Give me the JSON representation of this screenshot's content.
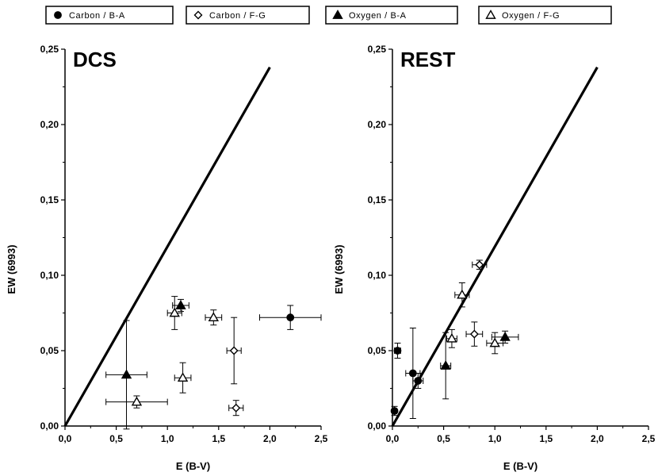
{
  "chart_data": {
    "type": "scatter",
    "legend": [
      {
        "key": "carbon_ba",
        "label": "Carbon / B-A",
        "marker": "circle",
        "fill": "#000000"
      },
      {
        "key": "carbon_fg",
        "label": "Carbon / F-G",
        "marker": "diamond",
        "fill": "#ffffff"
      },
      {
        "key": "oxygen_ba",
        "label": "Oxygen / B-A",
        "marker": "triangle",
        "fill": "#000000"
      },
      {
        "key": "oxygen_fg",
        "label": "Oxygen / F-G",
        "marker": "triangle",
        "fill": "#ffffff"
      }
    ],
    "legend_position": "top",
    "panels": [
      {
        "id": "dcs",
        "title": "DCS",
        "xlabel": "E (B-V)",
        "ylabel": "EW (6993)",
        "xlim": [
          0,
          2.5
        ],
        "ylim": [
          0,
          0.25
        ],
        "xticks": [
          "0,0",
          "0,5",
          "1,0",
          "1,5",
          "2,0",
          "2,5"
        ],
        "yticks": [
          "0,00",
          "0,05",
          "0,10",
          "0,15",
          "0,20",
          "0,25"
        ],
        "reference_line": {
          "x": [
            0,
            2.0
          ],
          "y": [
            0,
            0.238
          ]
        },
        "series": {
          "carbon_ba": [
            {
              "x": 2.2,
              "y": 0.072,
              "xerr": 0.3,
              "yerr": 0.008
            }
          ],
          "carbon_fg": [
            {
              "x": 1.65,
              "y": 0.05,
              "xerr": 0.07,
              "yerr": 0.022
            },
            {
              "x": 1.67,
              "y": 0.012,
              "xerr": 0.07,
              "yerr": 0.005
            }
          ],
          "oxygen_ba": [
            {
              "x": 0.6,
              "y": 0.034,
              "xerr": 0.2,
              "yerr": 0.036
            },
            {
              "x": 1.13,
              "y": 0.08,
              "xerr": 0.08,
              "yerr": 0.004
            }
          ],
          "oxygen_fg": [
            {
              "x": 0.7,
              "y": 0.016,
              "xerr": 0.3,
              "yerr": 0.004
            },
            {
              "x": 1.07,
              "y": 0.075,
              "xerr": 0.07,
              "yerr": 0.011
            },
            {
              "x": 1.15,
              "y": 0.032,
              "xerr": 0.08,
              "yerr": 0.01
            },
            {
              "x": 1.45,
              "y": 0.072,
              "xerr": 0.08,
              "yerr": 0.005
            }
          ]
        }
      },
      {
        "id": "rest",
        "title": "REST",
        "xlabel": "E (B-V)",
        "ylabel": "EW (6993)",
        "xlim": [
          0,
          2.5
        ],
        "ylim": [
          0,
          0.25
        ],
        "xticks": [
          "0,0",
          "0,5",
          "1,0",
          "1,5",
          "2,0",
          "2,5"
        ],
        "yticks": [
          "0,00",
          "0,05",
          "0,10",
          "0,15",
          "0,20",
          "0,25"
        ],
        "reference_line": {
          "x": [
            0,
            2.0
          ],
          "y": [
            0,
            0.238
          ]
        },
        "series": {
          "carbon_ba": [
            {
              "x": 0.05,
              "y": 0.05,
              "xerr": 0.03,
              "yerr": 0.005
            },
            {
              "x": 0.02,
              "y": 0.01,
              "xerr": 0.02,
              "yerr": 0.003
            },
            {
              "x": 0.2,
              "y": 0.035,
              "xerr": 0.07,
              "yerr": 0.03
            },
            {
              "x": 0.25,
              "y": 0.03,
              "xerr": 0.05,
              "yerr": 0.005
            }
          ],
          "carbon_fg": [
            {
              "x": 0.85,
              "y": 0.107,
              "xerr": 0.07,
              "yerr": 0.003
            },
            {
              "x": 0.8,
              "y": 0.061,
              "xerr": 0.08,
              "yerr": 0.008
            }
          ],
          "oxygen_ba": [
            {
              "x": 0.52,
              "y": 0.04,
              "xerr": 0.05,
              "yerr": 0.022
            },
            {
              "x": 1.1,
              "y": 0.059,
              "xerr": 0.13,
              "yerr": 0.004
            }
          ],
          "oxygen_fg": [
            {
              "x": 0.68,
              "y": 0.087,
              "xerr": 0.07,
              "yerr": 0.008
            },
            {
              "x": 0.58,
              "y": 0.058,
              "xerr": 0.05,
              "yerr": 0.006
            },
            {
              "x": 1.0,
              "y": 0.055,
              "xerr": 0.08,
              "yerr": 0.007
            }
          ]
        }
      }
    ]
  }
}
